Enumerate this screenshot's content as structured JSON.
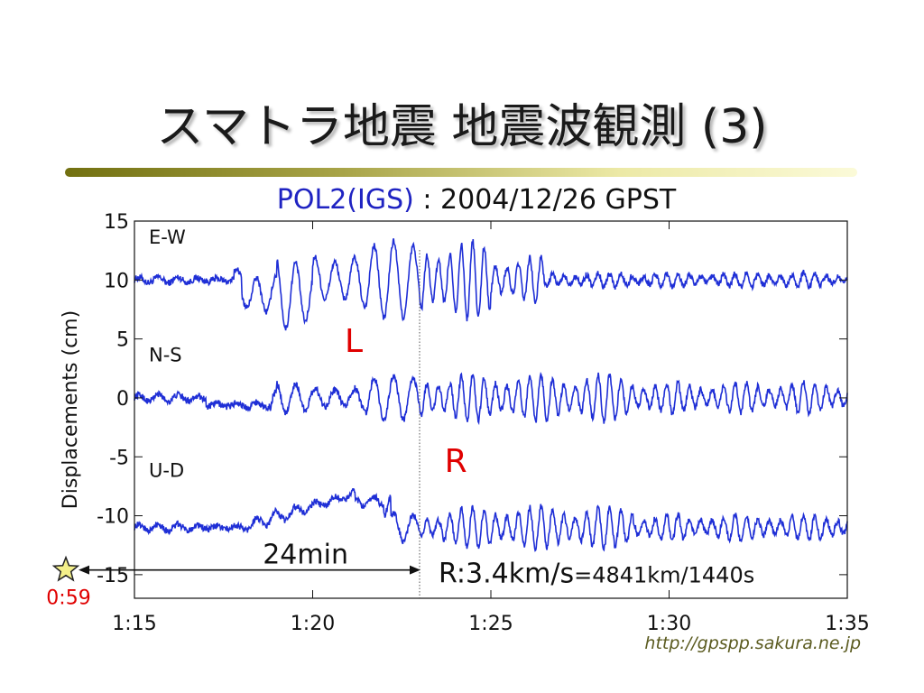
{
  "slide": {
    "title": "スマトラ地震 地震波観測 (3)",
    "subtitle_station": "POL2(IGS)",
    "subtitle_rest": " : 2004/12/26 GPST",
    "credit": "http://gpspp.sakura.ne.jp"
  },
  "chart_data": {
    "type": "line",
    "ylabel": "Displacements (cm)",
    "ylim": [
      -17,
      15
    ],
    "yticks": [
      15,
      10,
      5,
      0,
      -5,
      -10,
      -15
    ],
    "y_tick_labels": [
      "15",
      "10",
      "5",
      "0",
      "-5",
      "-10",
      "-15"
    ],
    "xlim_minutes": [
      75,
      95
    ],
    "xticks_minutes": [
      75,
      80,
      85,
      90,
      95
    ],
    "x_tick_labels": [
      "1:15",
      "1:20",
      "1:25",
      "1:30",
      "1:35"
    ],
    "series_color": "#1f2fd6",
    "series": [
      {
        "name": "E-W",
        "offset": 10
      },
      {
        "name": "N-S",
        "offset": 0
      },
      {
        "name": "U-D",
        "offset": -11
      }
    ],
    "annotations": {
      "L_label": "L",
      "R_label": "R",
      "arrival_line_minute": 83,
      "interval_label": "24min",
      "speed_label_main": "R:3.4km/s",
      "speed_label_small": "=4841km/1440s",
      "origin_time_label": "0:59"
    },
    "annotation_color": "#e00000",
    "star_color": "#f4f08a"
  }
}
